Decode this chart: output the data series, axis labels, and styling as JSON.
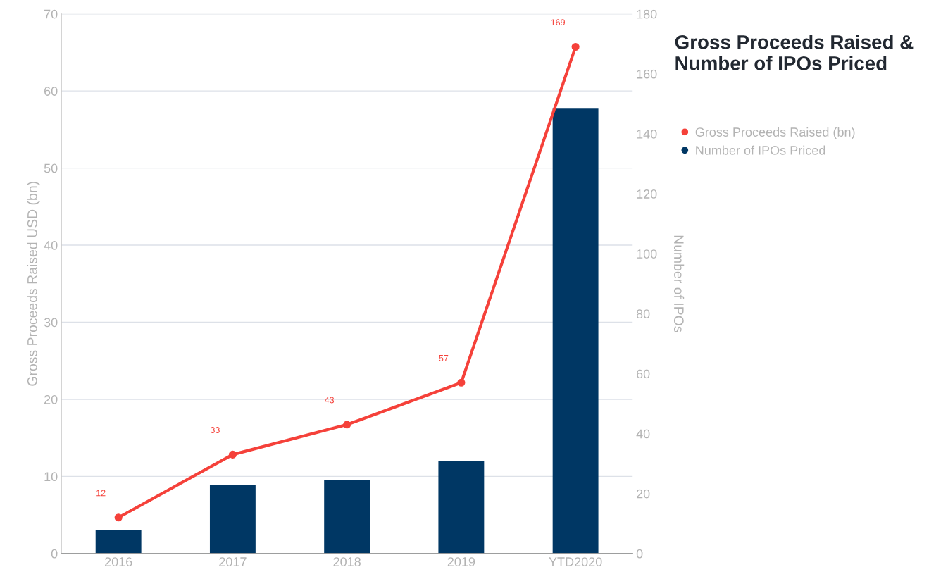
{
  "chart_data": {
    "type": "bar",
    "title": "Gross Proceeds Raised & Number of IPOs Priced",
    "categories": [
      "2016",
      "2017",
      "2018",
      "2019",
      "YTD2020"
    ],
    "ylabel": "Gross Proceeds Raised USD (bn)",
    "y2label": "Number of IPOs",
    "series": [
      {
        "name": "Gross Proceeds Raised (bn)",
        "type": "line",
        "axis": "y2",
        "color": "#f5413a",
        "values": [
          12,
          33,
          43,
          57,
          169
        ],
        "value_labels": [
          "12",
          "33",
          "43",
          "57",
          "169"
        ]
      },
      {
        "name": "Number of IPOs Priced",
        "color": "#003764",
        "values": [
          3.1,
          8.9,
          9.5,
          12.0,
          57.7
        ]
      }
    ],
    "ylim": [
      0,
      70
    ],
    "yticks": [
      0,
      10,
      20,
      30,
      40,
      50,
      60,
      70
    ],
    "y2lim": [
      0,
      180
    ],
    "y2ticks": [
      0,
      20,
      40,
      60,
      80,
      100,
      120,
      140,
      160,
      180
    ],
    "grid": "y",
    "legend": "right",
    "marker": "circle"
  }
}
